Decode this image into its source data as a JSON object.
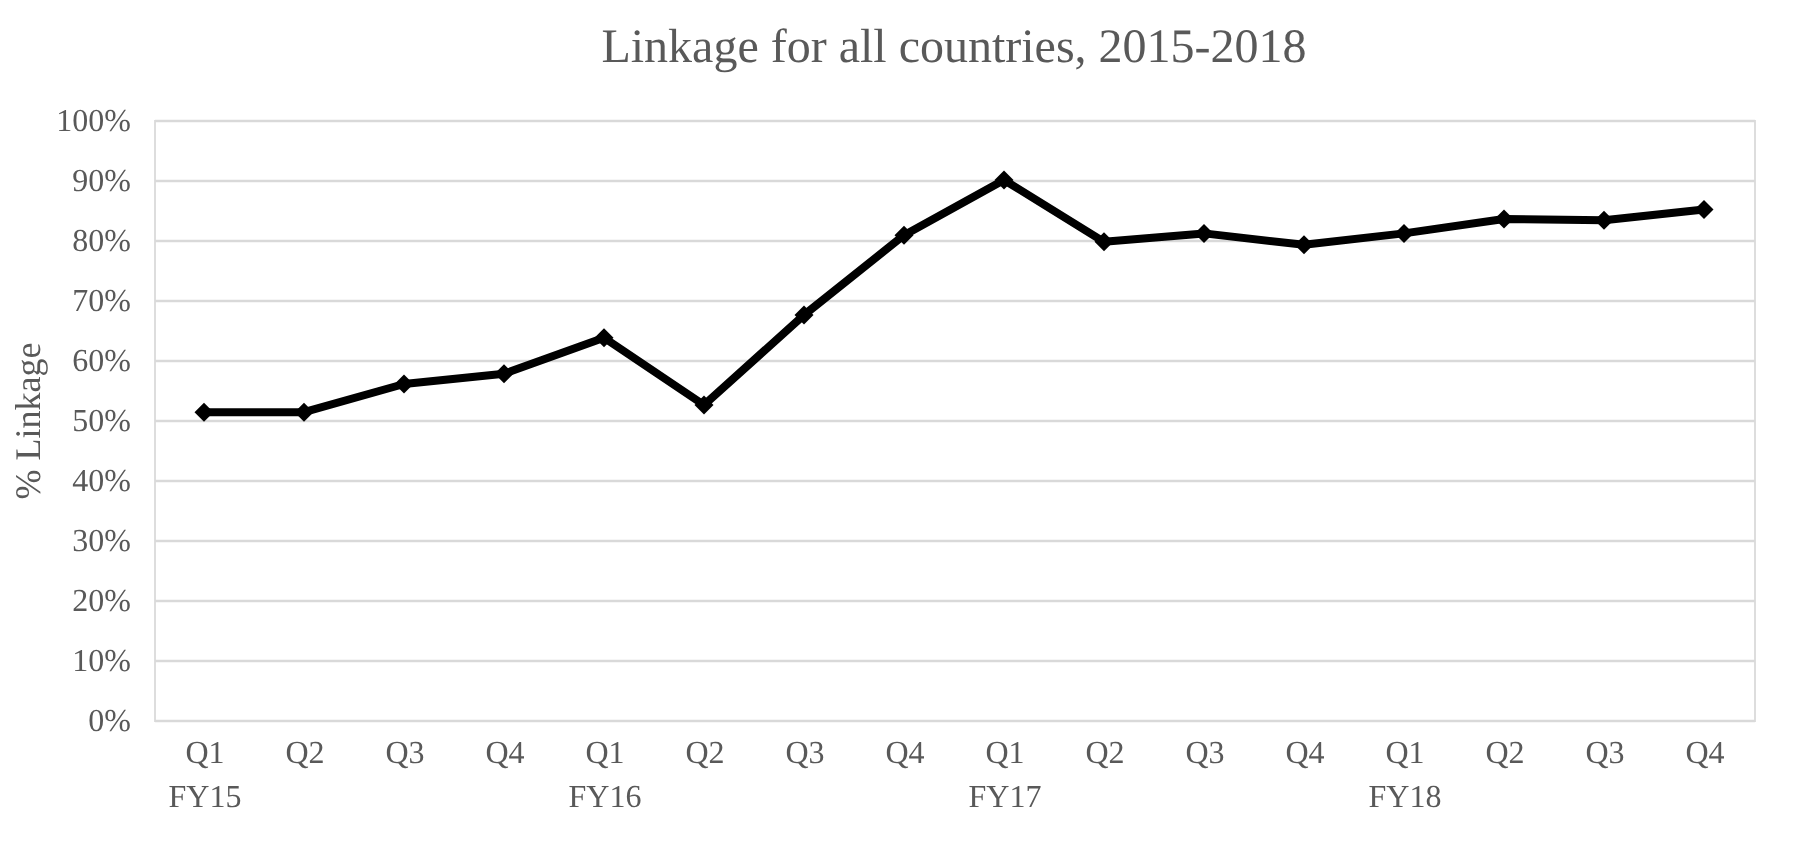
{
  "chart_data": {
    "type": "line",
    "title": "Linkage for all countries, 2015-2018",
    "ylabel": "% Linkage",
    "categories": [
      "Q1\nFY15",
      "Q2",
      "Q3",
      "Q4",
      "Q1\nFY16",
      "Q2",
      "Q3",
      "Q4",
      "Q1\nFY17",
      "Q2",
      "Q3",
      "Q4",
      "Q1\nFY18",
      "Q2",
      "Q3",
      "Q4"
    ],
    "series": [
      {
        "color": "#000000",
        "values": [
          51.3,
          51.3,
          56.0,
          57.7,
          63.7,
          52.5,
          67.5,
          80.8,
          90.0,
          79.7,
          81.1,
          79.2,
          81.1,
          83.5,
          83.3,
          85.1
        ]
      }
    ],
    "ylim": [
      0,
      100
    ],
    "yticks": [
      {
        "value": 0,
        "label": "0%"
      },
      {
        "value": 10,
        "label": "10%"
      },
      {
        "value": 20,
        "label": "20%"
      },
      {
        "value": 30,
        "label": "30%"
      },
      {
        "value": 40,
        "label": "40%"
      },
      {
        "value": 50,
        "label": "50%"
      },
      {
        "value": 60,
        "label": "60%"
      },
      {
        "value": 70,
        "label": "70%"
      },
      {
        "value": 80,
        "label": "80%"
      },
      {
        "value": 90,
        "label": "90%"
      },
      {
        "value": 100,
        "label": "100%"
      }
    ],
    "grid": "y",
    "marker": "diamond",
    "line_style": "solid"
  }
}
